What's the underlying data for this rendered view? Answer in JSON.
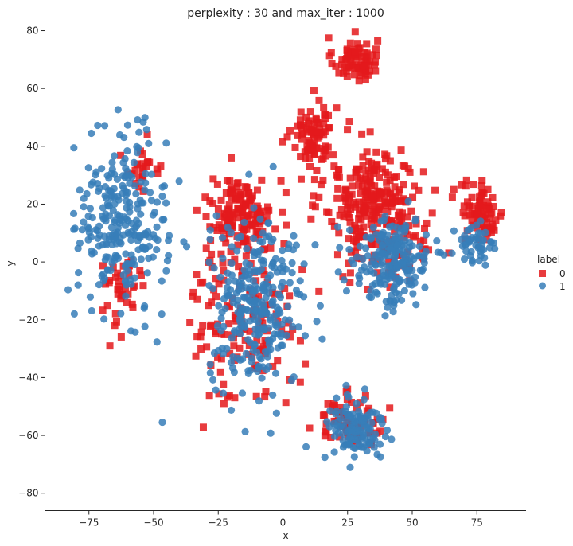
{
  "chart_data": {
    "type": "scatter",
    "title": "perplexity : 30 and max_iter : 1000",
    "xlabel": "x",
    "ylabel": "y",
    "xlim": [
      -92,
      94
    ],
    "ylim": [
      -86,
      84
    ],
    "xticks": [
      -75,
      -50,
      -25,
      0,
      25,
      50,
      75
    ],
    "yticks": [
      -80,
      -60,
      -40,
      -20,
      0,
      20,
      40,
      60,
      80
    ],
    "xtick_labels": [
      "−75",
      "−50",
      "−25",
      "0",
      "25",
      "50",
      "75"
    ],
    "ytick_labels": [
      "−80",
      "−60",
      "−40",
      "−20",
      "0",
      "20",
      "40",
      "60",
      "80"
    ],
    "grid": false,
    "legend": {
      "title": "label",
      "position": "right",
      "entries": [
        "0",
        "1"
      ]
    },
    "colors": {
      "0": "#e41a1c",
      "1": "#377eb8"
    },
    "series": [
      {
        "name": "0",
        "marker": "square",
        "color": "#e41a1c",
        "clusters": [
          {
            "cx": 28,
            "cy": 70,
            "sx": 5,
            "sy": 4.5,
            "n": 80
          },
          {
            "cx": 12,
            "cy": 44,
            "sx": 5,
            "sy": 7,
            "n": 90
          },
          {
            "cx": 35,
            "cy": 22,
            "sx": 11,
            "sy": 10,
            "n": 220
          },
          {
            "cx": 77,
            "cy": 17,
            "sx": 5,
            "sy": 6,
            "n": 80
          },
          {
            "cx": -16,
            "cy": 18,
            "sx": 7,
            "sy": 7,
            "n": 120
          },
          {
            "cx": -15,
            "cy": -15,
            "sx": 12,
            "sy": 20,
            "n": 170
          },
          {
            "cx": 26,
            "cy": -55,
            "sx": 8,
            "sy": 5,
            "n": 70
          },
          {
            "cx": -62,
            "cy": -10,
            "sx": 6,
            "sy": 8,
            "n": 40
          },
          {
            "cx": -54,
            "cy": 32,
            "sx": 5,
            "sy": 5,
            "n": 25
          },
          {
            "cx": 42,
            "cy": 4,
            "sx": 10,
            "sy": 8,
            "n": 70
          }
        ]
      },
      {
        "name": "1",
        "marker": "circle",
        "color": "#377eb8",
        "clusters": [
          {
            "cx": -62,
            "cy": 15,
            "sx": 10,
            "sy": 17,
            "n": 260
          },
          {
            "cx": -10,
            "cy": -15,
            "sx": 11,
            "sy": 17,
            "n": 280
          },
          {
            "cx": 42,
            "cy": 0,
            "sx": 9,
            "sy": 9,
            "n": 200
          },
          {
            "cx": 28,
            "cy": -58,
            "sx": 7,
            "sy": 7,
            "n": 120
          },
          {
            "cx": 75,
            "cy": 5,
            "sx": 4,
            "sy": 5,
            "n": 45
          }
        ]
      }
    ]
  }
}
